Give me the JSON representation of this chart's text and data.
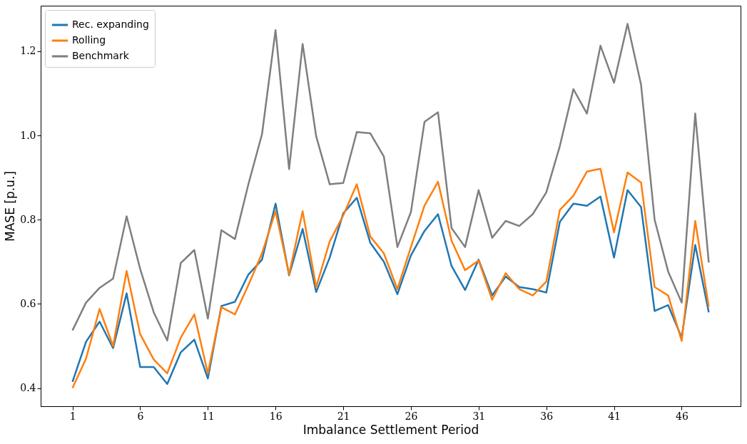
{
  "chart_data": {
    "type": "line",
    "xlabel": "Imbalance Settlement Period",
    "ylabel": "MASE [p.u.]",
    "x": [
      1,
      2,
      3,
      4,
      5,
      6,
      7,
      8,
      9,
      10,
      11,
      12,
      13,
      14,
      15,
      16,
      17,
      18,
      19,
      20,
      21,
      22,
      23,
      24,
      25,
      26,
      27,
      28,
      29,
      30,
      31,
      32,
      33,
      34,
      35,
      36,
      37,
      38,
      39,
      40,
      41,
      42,
      43,
      44,
      45,
      46,
      47,
      48
    ],
    "xlim": [
      -1.35,
      50.35
    ],
    "xticks": [
      1,
      6,
      11,
      16,
      21,
      26,
      31,
      36,
      41,
      46
    ],
    "ylim": [
      0.357,
      1.308
    ],
    "yticks": [
      {
        "value": 0.4,
        "label": "0.4"
      },
      {
        "value": 0.6,
        "label": "0.6"
      },
      {
        "value": 0.8,
        "label": "0.8"
      },
      {
        "value": 1.0,
        "label": "1.0"
      },
      {
        "value": 1.2,
        "label": "1.2"
      }
    ],
    "grid": false,
    "legend": "top left",
    "line_style": "solid",
    "marker": "none",
    "series": [
      {
        "name": "Rec. expanding",
        "color": "#1f77b4",
        "values": [
          0.415,
          0.51,
          0.558,
          0.495,
          0.625,
          0.45,
          0.45,
          0.41,
          0.485,
          0.515,
          0.423,
          0.595,
          0.605,
          0.67,
          0.705,
          0.838,
          0.668,
          0.778,
          0.628,
          0.71,
          0.815,
          0.852,
          0.745,
          0.7,
          0.623,
          0.715,
          0.773,
          0.813,
          0.69,
          0.633,
          0.705,
          0.62,
          0.665,
          0.64,
          0.635,
          0.627,
          0.795,
          0.838,
          0.833,
          0.855,
          0.71,
          0.87,
          0.83,
          0.583,
          0.597,
          0.52,
          0.74,
          0.58
        ]
      },
      {
        "name": "Rolling",
        "color": "#ff7f0e",
        "values": [
          0.4,
          0.47,
          0.588,
          0.5,
          0.678,
          0.528,
          0.468,
          0.435,
          0.52,
          0.575,
          0.435,
          0.592,
          0.575,
          0.645,
          0.72,
          0.82,
          0.67,
          0.82,
          0.64,
          0.748,
          0.81,
          0.884,
          0.76,
          0.72,
          0.635,
          0.735,
          0.833,
          0.89,
          0.75,
          0.68,
          0.703,
          0.61,
          0.673,
          0.635,
          0.62,
          0.653,
          0.823,
          0.857,
          0.914,
          0.921,
          0.77,
          0.912,
          0.888,
          0.64,
          0.62,
          0.512,
          0.797,
          0.593
        ]
      },
      {
        "name": "Benchmark",
        "color": "#7f7f7f",
        "values": [
          0.537,
          0.603,
          0.638,
          0.66,
          0.808,
          0.683,
          0.58,
          0.513,
          0.697,
          0.728,
          0.565,
          0.775,
          0.754,
          0.885,
          1.003,
          1.25,
          0.92,
          1.217,
          0.998,
          0.884,
          0.887,
          1.008,
          1.005,
          0.95,
          0.735,
          0.818,
          1.032,
          1.055,
          0.78,
          0.735,
          0.87,
          0.757,
          0.797,
          0.785,
          0.813,
          0.865,
          0.975,
          1.11,
          1.052,
          1.213,
          1.125,
          1.265,
          1.12,
          0.8,
          0.677,
          0.603,
          1.052,
          0.698
        ]
      }
    ]
  }
}
